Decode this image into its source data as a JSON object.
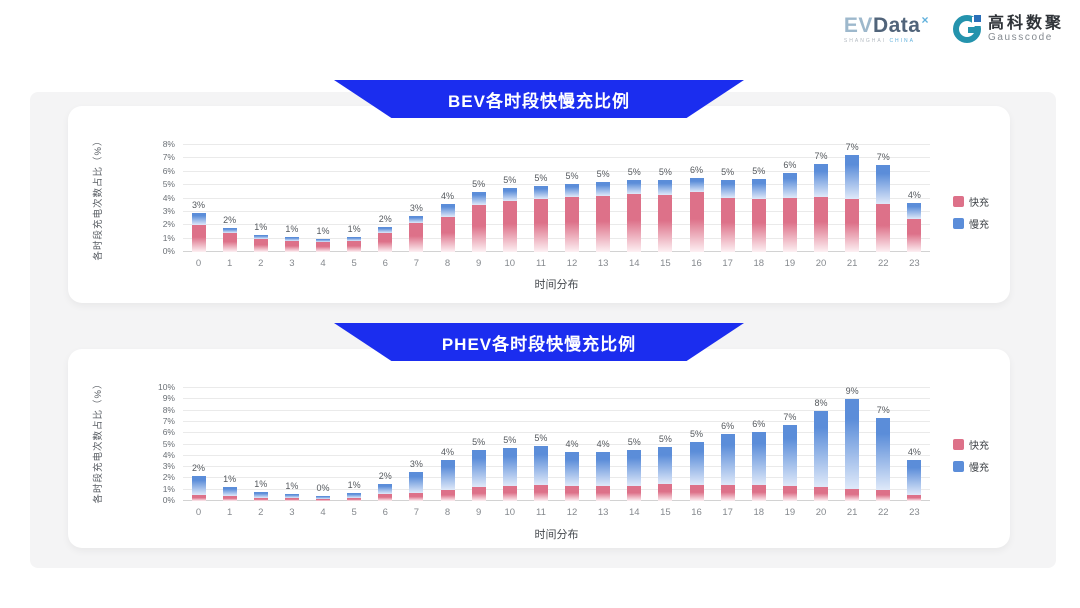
{
  "header": {
    "evdata_logo": {
      "ev": "EV",
      "data": "Data",
      "sup": "×",
      "subtitle_gray": "SHANGHAI",
      "subtitle_blue": "CHINA"
    },
    "gausscode_logo": {
      "cn": "高科数聚",
      "en": "Gausscode"
    }
  },
  "colors": {
    "banner_blue": "#1b2def",
    "fast_pink": "#dd7189",
    "slow_blue": "#5b8dd9",
    "board_gray": "#f4f4f5"
  },
  "chart_data": [
    {
      "type": "bar",
      "stacked": true,
      "title": "BEV各时段快慢充比例",
      "xlabel": "时间分布",
      "ylabel": "各时段充电次数占比（%）",
      "ylim": [
        0,
        8
      ],
      "y_tick_step": 1,
      "y_tick_suffix": "%",
      "grid": true,
      "legend_position": "right",
      "categories": [
        "0",
        "1",
        "2",
        "3",
        "4",
        "5",
        "6",
        "7",
        "8",
        "9",
        "10",
        "11",
        "12",
        "13",
        "14",
        "15",
        "16",
        "17",
        "18",
        "19",
        "20",
        "21",
        "22",
        "23"
      ],
      "series": [
        {
          "name": "快充",
          "color": "#dd7189",
          "fade": "#fdf0f3",
          "values": [
            2.0,
            1.4,
            0.95,
            0.85,
            0.75,
            0.85,
            1.45,
            2.2,
            2.6,
            3.5,
            3.8,
            3.95,
            4.1,
            4.2,
            4.35,
            4.3,
            4.45,
            4.05,
            4.0,
            4.05,
            4.15,
            3.95,
            3.6,
            2.45
          ]
        },
        {
          "name": "慢充",
          "color": "#5b8dd9",
          "fade": "#dfe9f9",
          "values": [
            0.9,
            0.4,
            0.3,
            0.25,
            0.2,
            0.25,
            0.4,
            0.5,
            1.0,
            1.0,
            1.0,
            1.0,
            1.0,
            1.0,
            1.0,
            1.05,
            1.1,
            1.3,
            1.45,
            1.85,
            2.4,
            3.3,
            2.9,
            1.2
          ]
        }
      ],
      "total_labels": [
        "3%",
        "2%",
        "1%",
        "1%",
        "1%",
        "1%",
        "2%",
        "3%",
        "4%",
        "5%",
        "5%",
        "5%",
        "5%",
        "5%",
        "5%",
        "5%",
        "6%",
        "5%",
        "5%",
        "6%",
        "7%",
        "7%",
        "7%",
        "4%"
      ]
    },
    {
      "type": "bar",
      "stacked": true,
      "title": "PHEV各时段快慢充比例",
      "xlabel": "时间分布",
      "ylabel": "各时段充电次数占比（%）",
      "ylim": [
        0,
        10
      ],
      "y_tick_step": 1,
      "y_tick_suffix": "%",
      "grid": true,
      "legend_position": "right",
      "categories": [
        "0",
        "1",
        "2",
        "3",
        "4",
        "5",
        "6",
        "7",
        "8",
        "9",
        "10",
        "11",
        "12",
        "13",
        "14",
        "15",
        "16",
        "17",
        "18",
        "19",
        "20",
        "21",
        "22",
        "23"
      ],
      "series": [
        {
          "name": "快充",
          "color": "#dd7189",
          "fade": "#fdf0f3",
          "values": [
            0.5,
            0.4,
            0.3,
            0.25,
            0.2,
            0.3,
            0.6,
            0.75,
            0.95,
            1.25,
            1.3,
            1.4,
            1.3,
            1.3,
            1.3,
            1.5,
            1.45,
            1.4,
            1.4,
            1.3,
            1.2,
            1.1,
            0.95,
            0.5
          ]
        },
        {
          "name": "慢充",
          "color": "#5b8dd9",
          "fade": "#dfe9f9",
          "values": [
            1.7,
            0.8,
            0.5,
            0.35,
            0.25,
            0.45,
            0.9,
            1.85,
            2.7,
            3.3,
            3.4,
            3.5,
            3.0,
            3.05,
            3.2,
            3.3,
            3.8,
            4.5,
            4.7,
            5.4,
            6.8,
            7.9,
            6.4,
            3.1
          ]
        }
      ],
      "total_labels": [
        "2%",
        "1%",
        "1%",
        "1%",
        "0%",
        "1%",
        "2%",
        "3%",
        "4%",
        "5%",
        "5%",
        "5%",
        "4%",
        "4%",
        "5%",
        "5%",
        "5%",
        "6%",
        "6%",
        "7%",
        "8%",
        "9%",
        "7%",
        "4%"
      ]
    }
  ]
}
